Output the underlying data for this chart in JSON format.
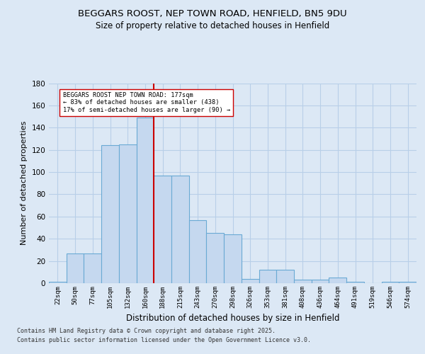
{
  "title_line1": "BEGGARS ROOST, NEP TOWN ROAD, HENFIELD, BN5 9DU",
  "title_line2": "Size of property relative to detached houses in Henfield",
  "xlabel": "Distribution of detached houses by size in Henfield",
  "ylabel": "Number of detached properties",
  "categories": [
    "22sqm",
    "50sqm",
    "77sqm",
    "105sqm",
    "132sqm",
    "160sqm",
    "188sqm",
    "215sqm",
    "243sqm",
    "270sqm",
    "298sqm",
    "326sqm",
    "353sqm",
    "381sqm",
    "408sqm",
    "436sqm",
    "464sqm",
    "491sqm",
    "519sqm",
    "546sqm",
    "574sqm"
  ],
  "values": [
    1,
    27,
    27,
    124,
    125,
    149,
    97,
    97,
    57,
    45,
    44,
    4,
    12,
    12,
    3,
    3,
    5,
    1,
    0,
    1,
    1
  ],
  "bar_color": "#c5d8ef",
  "bar_edge_color": "#6aaad4",
  "property_label": "BEGGARS ROOST NEP TOWN ROAD: 177sqm",
  "annotation_line2": "← 83% of detached houses are smaller (438)",
  "annotation_line3": "17% of semi-detached houses are larger (90) →",
  "vline_color": "#cc0000",
  "vline_bin_index": 6,
  "background_color": "#dce8f5",
  "plot_bg_color": "#dce8f5",
  "grid_color": "#b8cfe8",
  "footer_line1": "Contains HM Land Registry data © Crown copyright and database right 2025.",
  "footer_line2": "Contains public sector information licensed under the Open Government Licence v3.0.",
  "ylim": [
    0,
    180
  ],
  "yticks": [
    0,
    20,
    40,
    60,
    80,
    100,
    120,
    140,
    160,
    180
  ]
}
